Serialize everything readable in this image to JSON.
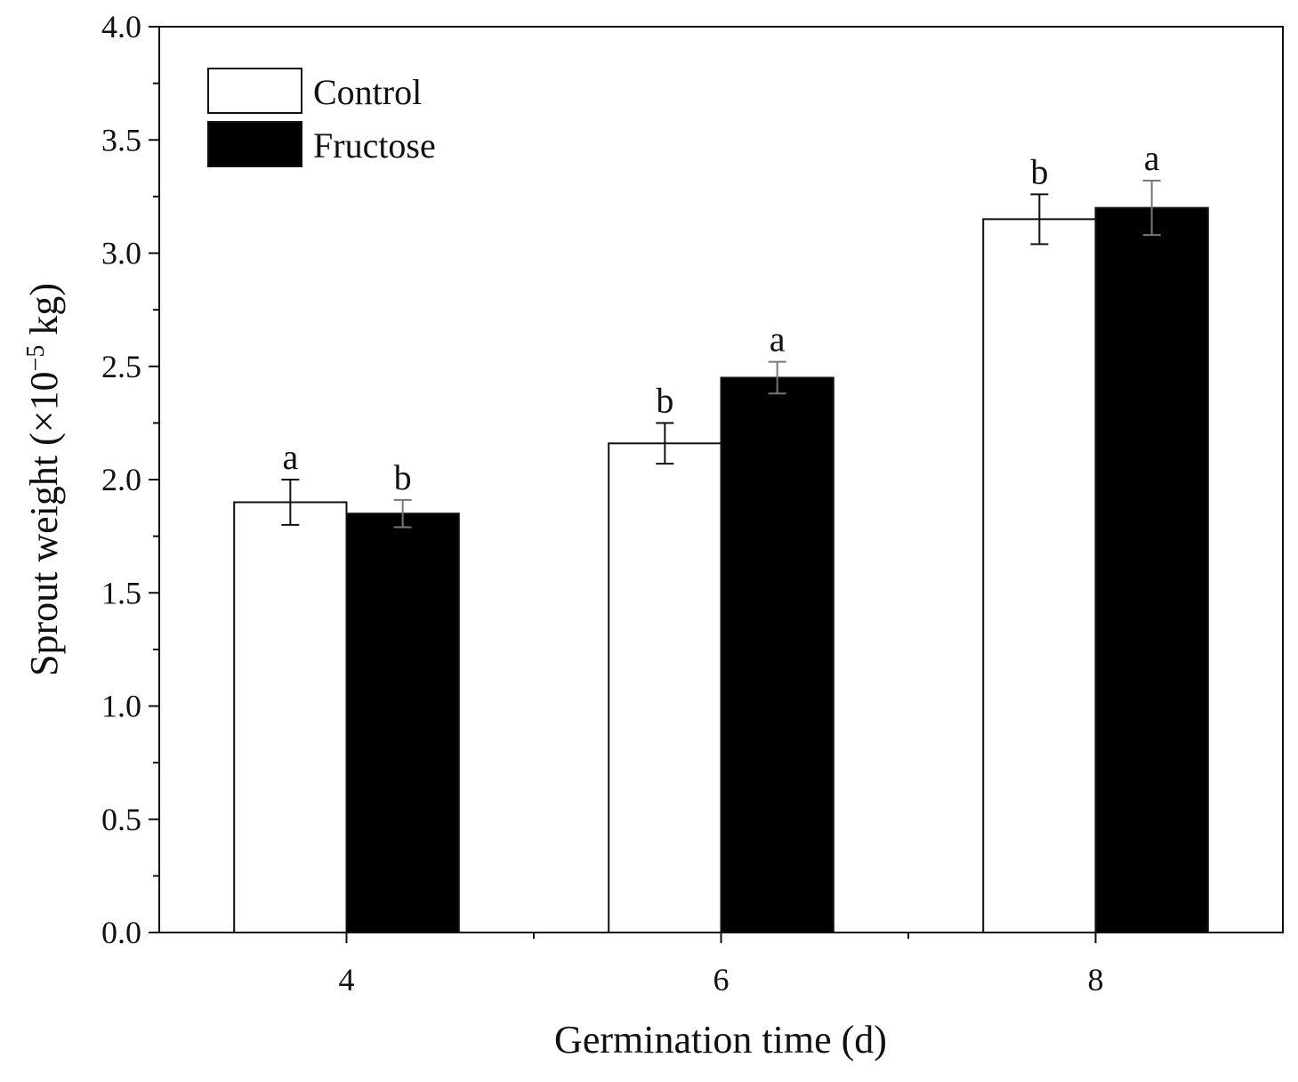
{
  "chart_data": {
    "type": "bar",
    "title": "",
    "xlabel": "Germination time (d)",
    "ylabel": {
      "prefix": "Sprout weight (×10",
      "exponent": "−5",
      "suffix": " kg)"
    },
    "categories": [
      "4",
      "6",
      "8"
    ],
    "ylim": [
      0.0,
      4.0
    ],
    "yticks": [
      "0.0",
      "0.5",
      "1.0",
      "1.5",
      "2.0",
      "2.5",
      "3.0",
      "3.5",
      "4.0"
    ],
    "series": [
      {
        "name": "Control",
        "color": "#ffffff",
        "values": [
          1.9,
          2.16,
          3.15
        ],
        "errors": [
          0.1,
          0.09,
          0.11
        ],
        "letters": [
          "a",
          "b",
          "b"
        ]
      },
      {
        "name": "Fructose",
        "color": "#000000",
        "values": [
          1.85,
          2.45,
          3.2
        ],
        "errors": [
          0.06,
          0.07,
          0.12
        ],
        "letters": [
          "b",
          "a",
          "a"
        ]
      }
    ],
    "legend_position": "top-left",
    "grid": false
  }
}
